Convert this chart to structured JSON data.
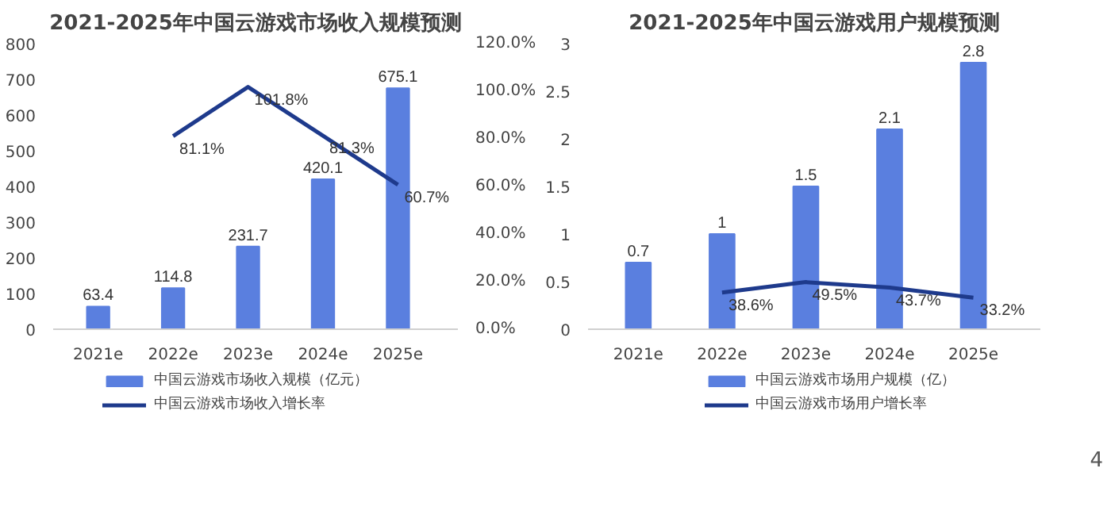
{
  "chart_data": [
    {
      "type": "bar",
      "title": "2021-2025年中国云游戏市场收入规模预测",
      "categories": [
        "2021e",
        "2022e",
        "2023e",
        "2024e",
        "2025e"
      ],
      "series": [
        {
          "name": "中国云游戏市场收入规模（亿元）",
          "color": "#5a7fdf",
          "values": [
            63.4,
            114.8,
            231.7,
            420.1,
            675.1
          ],
          "value_labels": [
            "63.4",
            "114.8",
            "231.7",
            "420.1",
            "675.1"
          ]
        },
        {
          "name": "中国云游戏市场收入增长率",
          "type": "line",
          "axis": "y2",
          "color": "#1e3a8c",
          "values": [
            null,
            81.1,
            101.8,
            81.3,
            60.7
          ],
          "value_labels": [
            null,
            "81.1%",
            "101.8%",
            "81.3%",
            "60.7%"
          ]
        }
      ],
      "ylim": [
        0,
        800
      ],
      "yticks": [
        0,
        100,
        200,
        300,
        400,
        500,
        600,
        700,
        800
      ],
      "y2lim": [
        0,
        120
      ],
      "y2ticks": [
        {
          "value": 0,
          "label": "0.0%"
        },
        {
          "value": 20,
          "label": "20.0%"
        },
        {
          "value": 40,
          "label": "40.0%"
        },
        {
          "value": 60,
          "label": "60.0%"
        },
        {
          "value": 80,
          "label": "80.0%"
        },
        {
          "value": 100,
          "label": "100.0%"
        },
        {
          "value": 120,
          "label": "120.0%"
        }
      ],
      "legend": "bottom",
      "grid": false
    },
    {
      "type": "bar",
      "title": "2021-2025年中国云游戏用户规模预测",
      "categories": [
        "2021e",
        "2022e",
        "2023e",
        "2024e",
        "2025e"
      ],
      "series": [
        {
          "name": "中国云游戏市场用户规模（亿）",
          "color": "#5a7fdf",
          "values": [
            0.7,
            1,
            1.5,
            2.1,
            2.8
          ],
          "value_labels": [
            "0.7",
            "1",
            "1.5",
            "2.1",
            "2.8"
          ]
        },
        {
          "name": "中国云游戏市场用户增长率",
          "type": "line",
          "color": "#1e3a8c",
          "values": [
            null,
            0.386,
            0.495,
            0.437,
            0.332
          ],
          "value_labels": [
            null,
            "38.6%",
            "49.5%",
            "43.7%",
            "33.2%"
          ]
        }
      ],
      "ylim": [
        0,
        3
      ],
      "yticks": [
        0,
        0.5,
        1,
        1.5,
        2,
        2.5,
        3
      ],
      "legend": "bottom",
      "grid": false,
      "annotations": [
        "4"
      ]
    }
  ]
}
